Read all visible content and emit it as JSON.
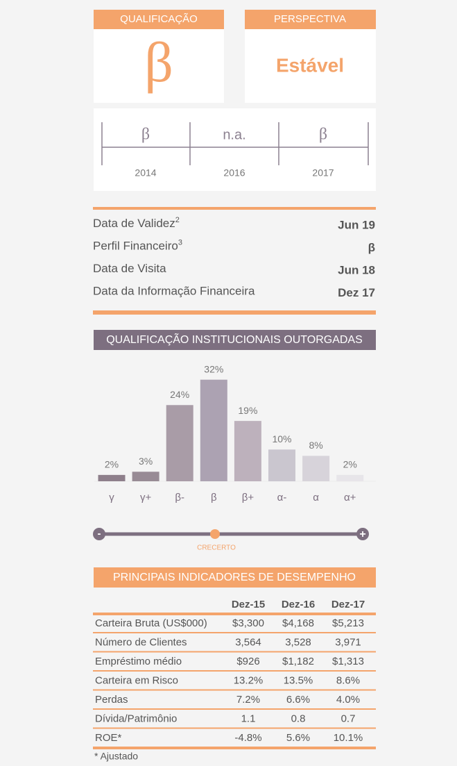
{
  "rating": {
    "label": "QUALIFICAÇÃO",
    "value": "β"
  },
  "outlook": {
    "label": "PERSPECTIVA",
    "value": "Estável"
  },
  "history": [
    {
      "rating": "β",
      "year": "2014"
    },
    {
      "rating": "n.a.",
      "year": "2016"
    },
    {
      "rating": "β",
      "year": "2017"
    }
  ],
  "details": [
    {
      "label": "Data de Validez",
      "sup": "2",
      "value": "Jun 19"
    },
    {
      "label": "Perfil Financeiro",
      "sup": "3",
      "value": "β"
    },
    {
      "label": "Data de Visita",
      "value": "Jun 18"
    },
    {
      "label": "Data da Informação Financeira",
      "value": "Dez 17"
    }
  ],
  "chart_data": {
    "type": "bar",
    "title": "QUALIFICAÇÃO INSTITUCIONAIS OUTORGADAS",
    "categories": [
      "γ",
      "γ+",
      "β-",
      "β",
      "β+",
      "α-",
      "α",
      "α+"
    ],
    "values": [
      2,
      3,
      24,
      32,
      19,
      10,
      8,
      2
    ],
    "value_labels": [
      "2%",
      "3%",
      "24%",
      "32%",
      "19%",
      "10%",
      "8%",
      "2%"
    ],
    "colors": [
      "#8e7f8b",
      "#988b95",
      "#a99ca7",
      "#aca2b2",
      "#bdb1bc",
      "#cac6cf",
      "#d7d3da",
      "#e7e5e9"
    ],
    "ylim": [
      0,
      35
    ]
  },
  "scale": {
    "min": "-",
    "max": "+",
    "label": "CRECERTO"
  },
  "table": {
    "title": "PRINCIPAIS INDICADORES DE DESEMPENHO",
    "columns": [
      "Dez-15",
      "Dez-16",
      "Dez-17"
    ],
    "rows": [
      [
        "Carteira Bruta (US$000)",
        "$3,300",
        "$4,168",
        "$5,213"
      ],
      [
        "Número de Clientes",
        "3,564",
        "3,528",
        "3,971"
      ],
      [
        "Empréstimo médio",
        "$926",
        "$1,182",
        "$1,313"
      ],
      [
        "Carteira em Risco",
        "13.2%",
        "13.5%",
        "8.6%"
      ],
      [
        "Perdas",
        "7.2%",
        "6.6%",
        "4.0%"
      ],
      [
        "Dívida/Patrimônio",
        "1.1",
        "0.8",
        "0.7"
      ],
      [
        "ROE*",
        "-4.8%",
        "5.6%",
        "10.1%"
      ]
    ],
    "footnote": "* Ajustado"
  }
}
